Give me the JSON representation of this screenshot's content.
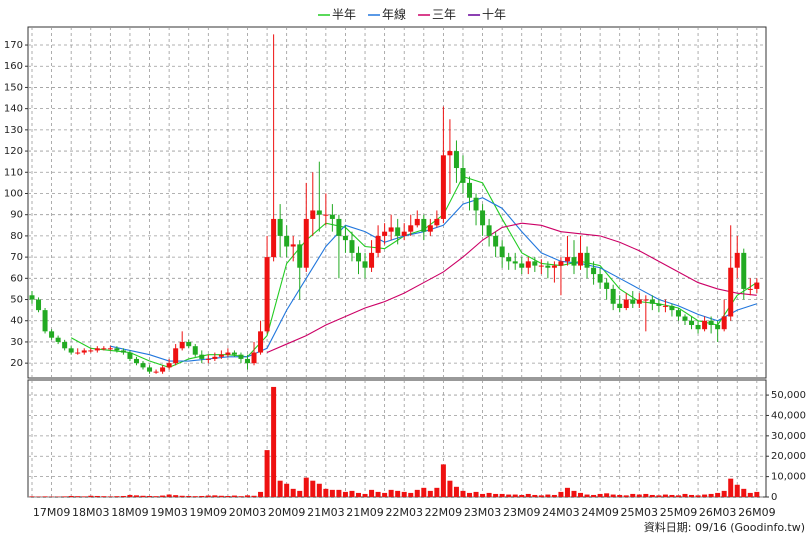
{
  "chart_data": {
    "type": "candlestick",
    "legend": "top",
    "categories": [
      null,
      null,
      null,
      "17M09",
      null,
      null,
      null,
      null,
      null,
      "18M03",
      null,
      null,
      null,
      null,
      null,
      "18M09",
      null,
      null,
      null,
      null,
      null,
      "19M03",
      null,
      null,
      null,
      null,
      null,
      "19M09",
      null,
      null,
      null,
      null,
      null,
      "20M03",
      null,
      null,
      null,
      null,
      null,
      "20M09",
      null,
      null,
      null,
      null,
      null,
      "21M03",
      null,
      null,
      null,
      null,
      null,
      "21M09",
      null,
      null,
      null,
      null,
      null,
      "22M03",
      null,
      null,
      null,
      null,
      null,
      "22M09",
      null,
      null,
      null,
      null,
      null,
      "23M03",
      null,
      null,
      null,
      null,
      null,
      "23M09",
      null,
      null,
      null,
      null,
      null,
      "24M03",
      null,
      null,
      null,
      null,
      null,
      "24M09",
      null,
      null,
      null,
      null,
      null,
      "25M03",
      null,
      null,
      null,
      null,
      null,
      "25M09",
      null,
      null,
      null,
      null,
      null,
      "26M03",
      null,
      null,
      null,
      null,
      null,
      "26M09"
    ],
    "ohlc": [
      [
        52,
        54,
        48,
        50
      ],
      [
        50,
        51,
        44,
        45
      ],
      [
        45,
        46,
        34,
        35
      ],
      [
        35,
        36,
        31,
        32
      ],
      [
        32,
        33,
        29,
        30
      ],
      [
        30,
        31,
        26,
        27
      ],
      [
        27,
        28,
        24,
        25
      ],
      [
        25,
        27,
        24,
        25
      ],
      [
        25,
        27,
        24,
        26
      ],
      [
        26,
        27,
        25,
        26
      ],
      [
        26,
        28,
        25,
        27
      ],
      [
        27,
        28,
        26,
        27
      ],
      [
        27,
        28,
        26,
        27
      ],
      [
        27,
        28,
        25,
        26
      ],
      [
        26,
        27,
        24,
        25
      ],
      [
        25,
        26,
        21,
        22
      ],
      [
        22,
        23,
        19,
        20
      ],
      [
        20,
        21,
        17,
        18
      ],
      [
        18,
        19,
        15,
        16
      ],
      [
        16,
        17,
        15,
        16
      ],
      [
        16,
        19,
        15,
        18
      ],
      [
        18,
        22,
        17,
        20
      ],
      [
        20,
        29,
        19,
        27
      ],
      [
        27,
        35,
        26,
        30
      ],
      [
        30,
        31,
        27,
        28
      ],
      [
        28,
        29,
        23,
        24
      ],
      [
        24,
        26,
        20,
        22
      ],
      [
        22,
        24,
        20,
        22
      ],
      [
        22,
        25,
        21,
        23
      ],
      [
        23,
        26,
        22,
        24
      ],
      [
        24,
        27,
        23,
        25
      ],
      [
        25,
        26,
        23,
        24
      ],
      [
        24,
        25,
        20,
        22
      ],
      [
        22,
        24,
        17,
        20
      ],
      [
        20,
        30,
        19,
        25
      ],
      [
        25,
        40,
        24,
        35
      ],
      [
        35,
        80,
        34,
        70
      ],
      [
        70,
        175,
        68,
        88
      ],
      [
        88,
        95,
        70,
        80
      ],
      [
        80,
        85,
        70,
        75
      ],
      [
        75,
        80,
        68,
        76
      ],
      [
        76,
        78,
        50,
        65
      ],
      [
        65,
        105,
        63,
        88
      ],
      [
        88,
        110,
        80,
        92
      ],
      [
        92,
        115,
        82,
        90
      ],
      [
        90,
        100,
        85,
        90
      ],
      [
        90,
        95,
        82,
        88
      ],
      [
        88,
        90,
        60,
        80
      ],
      [
        80,
        85,
        72,
        78
      ],
      [
        78,
        82,
        68,
        72
      ],
      [
        72,
        75,
        62,
        68
      ],
      [
        68,
        72,
        60,
        65
      ],
      [
        65,
        78,
        63,
        72
      ],
      [
        72,
        85,
        70,
        80
      ],
      [
        80,
        86,
        76,
        82
      ],
      [
        82,
        90,
        78,
        84
      ],
      [
        84,
        88,
        76,
        80
      ],
      [
        80,
        86,
        78,
        82
      ],
      [
        82,
        90,
        80,
        85
      ],
      [
        85,
        92,
        84,
        88
      ],
      [
        88,
        90,
        78,
        82
      ],
      [
        82,
        88,
        80,
        85
      ],
      [
        85,
        92,
        84,
        88
      ],
      [
        88,
        141,
        86,
        118
      ],
      [
        118,
        135,
        100,
        120
      ],
      [
        120,
        125,
        105,
        112
      ],
      [
        112,
        118,
        100,
        105
      ],
      [
        105,
        108,
        92,
        98
      ],
      [
        98,
        100,
        85,
        92
      ],
      [
        92,
        95,
        80,
        85
      ],
      [
        85,
        88,
        75,
        80
      ],
      [
        80,
        82,
        70,
        75
      ],
      [
        75,
        78,
        65,
        70
      ],
      [
        70,
        72,
        64,
        68
      ],
      [
        68,
        72,
        64,
        67
      ],
      [
        67,
        70,
        62,
        65
      ],
      [
        65,
        70,
        62,
        68
      ],
      [
        68,
        70,
        63,
        66
      ],
      [
        66,
        69,
        62,
        66
      ],
      [
        66,
        68,
        60,
        65
      ],
      [
        65,
        68,
        58,
        66
      ],
      [
        66,
        70,
        52,
        68
      ],
      [
        68,
        80,
        66,
        70
      ],
      [
        70,
        78,
        62,
        66
      ],
      [
        66,
        80,
        64,
        72
      ],
      [
        72,
        75,
        60,
        65
      ],
      [
        65,
        68,
        57,
        62
      ],
      [
        62,
        65,
        55,
        58
      ],
      [
        58,
        60,
        50,
        55
      ],
      [
        55,
        57,
        45,
        48
      ],
      [
        48,
        52,
        44,
        46
      ],
      [
        46,
        53,
        45,
        50
      ],
      [
        50,
        54,
        46,
        48
      ],
      [
        48,
        53,
        46,
        50
      ],
      [
        50,
        52,
        35,
        50
      ],
      [
        50,
        52,
        45,
        48
      ],
      [
        48,
        50,
        44,
        47
      ],
      [
        47,
        50,
        44,
        47
      ],
      [
        47,
        48,
        42,
        45
      ],
      [
        45,
        46,
        40,
        42
      ],
      [
        42,
        43,
        38,
        40
      ],
      [
        40,
        42,
        36,
        38
      ],
      [
        38,
        40,
        34,
        36
      ],
      [
        36,
        42,
        35,
        40
      ],
      [
        40,
        42,
        34,
        38
      ],
      [
        38,
        40,
        30,
        36
      ],
      [
        36,
        50,
        35,
        42
      ],
      [
        42,
        85,
        40,
        65
      ],
      [
        65,
        80,
        60,
        72
      ],
      [
        72,
        74,
        50,
        55
      ],
      [
        55,
        60,
        52,
        55
      ],
      [
        55,
        60,
        53,
        58
      ]
    ],
    "up_color": "#ee1111",
    "down_color": "#22aa22",
    "volume": [
      300,
      200,
      300,
      200,
      200,
      300,
      500,
      400,
      300,
      600,
      500,
      400,
      300,
      400,
      500,
      1000,
      800,
      600,
      500,
      400,
      700,
      1200,
      900,
      600,
      500,
      400,
      500,
      700,
      800,
      600,
      500,
      700,
      400,
      800,
      600,
      2500,
      23000,
      54000,
      8000,
      6500,
      4000,
      3000,
      9500,
      8000,
      6500,
      4000,
      3500,
      3500,
      2500,
      3000,
      2000,
      1500,
      3500,
      2500,
      2000,
      3500,
      3000,
      2500,
      2000,
      3500,
      4500,
      3000,
      4500,
      16000,
      8000,
      5000,
      3000,
      2000,
      2500,
      1500,
      2000,
      1500,
      1500,
      1200,
      1200,
      1000,
      1500,
      1000,
      800,
      1200,
      1000,
      2500,
      4500,
      3000,
      2000,
      1200,
      1000,
      1500,
      1800,
      1200,
      1000,
      800,
      1500,
      1200,
      1500,
      1000,
      800,
      1200,
      1000,
      800,
      1500,
      1000,
      800,
      1200,
      1500,
      2000,
      3000,
      9000,
      6000,
      4000,
      2000,
      2500
    ],
    "volume_color": "#ee1111",
    "series": [
      {
        "name": "半年",
        "color": "#22cc22",
        "x": [
          6,
          9,
          12,
          15,
          18,
          21,
          24,
          27,
          30,
          33,
          36,
          39,
          42,
          45,
          48,
          51,
          54,
          57,
          60,
          63,
          66,
          69,
          72,
          75,
          78,
          81,
          84,
          87,
          90,
          93,
          96,
          99,
          102,
          105,
          108,
          111
        ],
        "values": [
          32,
          27,
          26,
          25,
          21,
          18,
          22,
          24,
          24,
          23,
          33,
          67,
          78,
          86,
          84,
          75,
          74,
          80,
          83,
          90,
          108,
          105,
          88,
          72,
          67,
          66,
          68,
          66,
          55,
          49,
          48,
          46,
          40,
          38,
          52,
          58
        ]
      },
      {
        "name": "年線",
        "color": "#2277dd",
        "x": [
          12,
          15,
          18,
          21,
          24,
          27,
          30,
          33,
          36,
          39,
          42,
          45,
          48,
          51,
          54,
          57,
          60,
          63,
          66,
          69,
          72,
          75,
          78,
          81,
          84,
          87,
          90,
          93,
          96,
          99,
          102,
          105,
          108,
          111
        ],
        "values": [
          28,
          26,
          24,
          21,
          21,
          22,
          23,
          23,
          27,
          45,
          60,
          75,
          85,
          82,
          77,
          80,
          82,
          85,
          95,
          98,
          93,
          82,
          72,
          68,
          67,
          65,
          60,
          55,
          50,
          47,
          43,
          40,
          45,
          48
        ]
      },
      {
        "name": "三年",
        "color": "#cc0066",
        "x": [
          36,
          39,
          42,
          45,
          48,
          51,
          54,
          57,
          60,
          63,
          66,
          69,
          72,
          75,
          78,
          81,
          84,
          87,
          90,
          93,
          96,
          99,
          102,
          105,
          108,
          111
        ],
        "values": [
          25,
          29,
          33,
          38,
          42,
          46,
          49,
          53,
          58,
          63,
          70,
          78,
          84,
          86,
          85,
          82,
          81,
          80,
          77,
          73,
          68,
          63,
          58,
          55,
          53,
          52
        ]
      },
      {
        "name": "十年",
        "color": "#660099",
        "x": [],
        "values": []
      }
    ],
    "ylim": [
      13,
      178.5
    ],
    "yticks": [
      20,
      30,
      40,
      50,
      60,
      70,
      80,
      90,
      100,
      110,
      120,
      130,
      140,
      150,
      160,
      170
    ],
    "y2lim": [
      0,
      57400
    ],
    "y2ticks": [
      0,
      {
        "value": 10000,
        "label": "10,000"
      },
      {
        "value": 20000,
        "label": "20,000"
      },
      {
        "value": 30000,
        "label": "30,000"
      },
      {
        "value": 40000,
        "label": "40,000"
      },
      {
        "value": 50000,
        "label": "50,000"
      }
    ],
    "grid": true,
    "footer": "資料日期: 09/16 (Goodinfo.tw)"
  }
}
